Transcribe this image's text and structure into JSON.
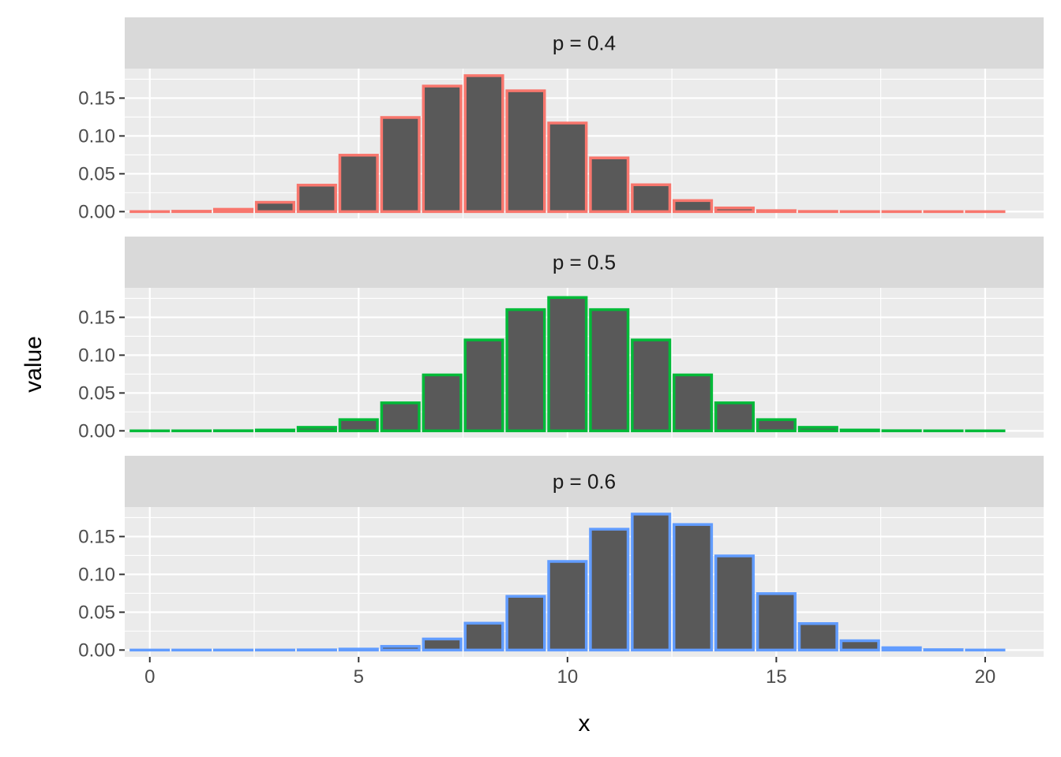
{
  "chart_data": {
    "type": "bar",
    "xlabel": "x",
    "ylabel": "value",
    "xlim": [
      -0.6,
      21.4
    ],
    "ylim": [
      -0.009,
      0.189
    ],
    "x_ticks": [
      0,
      5,
      10,
      15,
      20
    ],
    "x_tick_labels": [
      "0",
      "5",
      "10",
      "15",
      "20"
    ],
    "y_ticks": [
      0,
      0.05,
      0.1,
      0.15
    ],
    "y_tick_labels": [
      "0.00",
      "0.05",
      "0.10",
      "0.15"
    ],
    "grid": true,
    "x": [
      0,
      1,
      2,
      3,
      4,
      5,
      6,
      7,
      8,
      9,
      10,
      11,
      12,
      13,
      14,
      15,
      16,
      17,
      18,
      19,
      20
    ],
    "bar_fill": "#595959",
    "panel_background": "#ebebeb",
    "strip_background": "#d9d9d9",
    "panels": [
      {
        "label": "p = 0.4",
        "color": "#f8766d",
        "values": [
          3.66e-05,
          0.000487,
          0.00309,
          0.0123,
          0.035,
          0.0746,
          0.1244,
          0.1659,
          0.1797,
          0.1597,
          0.1171,
          0.071,
          0.0355,
          0.0146,
          0.00487,
          0.00129,
          0.00027,
          4.23e-05,
          4.7e-06,
          3.3e-07,
          1e-08
        ]
      },
      {
        "label": "p = 0.5",
        "color": "#00ba38",
        "values": [
          9.5e-07,
          1.91e-05,
          0.000181,
          0.00109,
          0.00462,
          0.0148,
          0.037,
          0.0739,
          0.1201,
          0.1602,
          0.1762,
          0.1602,
          0.1201,
          0.0739,
          0.037,
          0.0148,
          0.00462,
          0.00109,
          0.000181,
          1.91e-05,
          9.5e-07
        ]
      },
      {
        "label": "p = 0.6",
        "color": "#619cff",
        "values": [
          1e-08,
          3.3e-07,
          4.7e-06,
          4.23e-05,
          0.00027,
          0.00129,
          0.00487,
          0.0146,
          0.0355,
          0.071,
          0.1171,
          0.1597,
          0.1797,
          0.1659,
          0.1244,
          0.0746,
          0.035,
          0.0123,
          0.00309,
          0.000487,
          3.66e-05
        ]
      }
    ]
  }
}
